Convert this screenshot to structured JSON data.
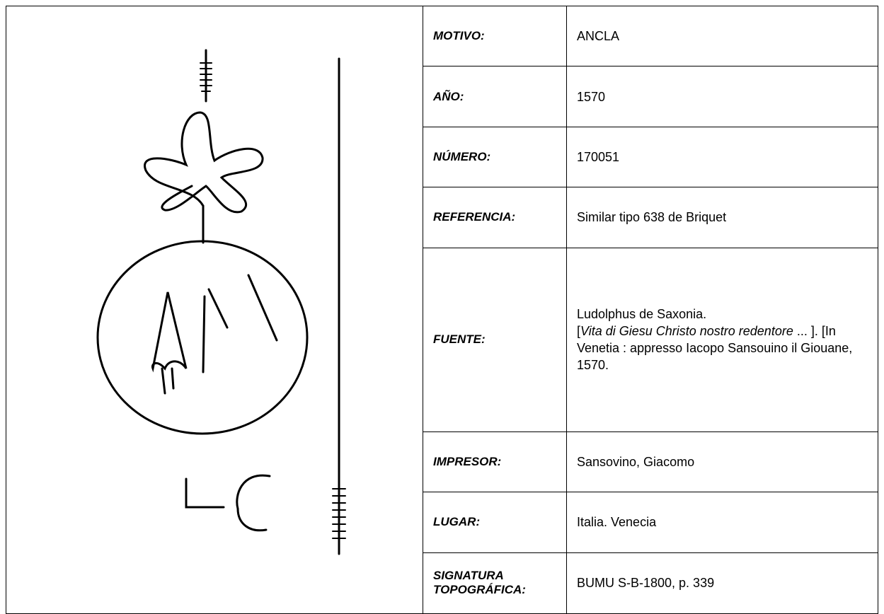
{
  "rows": [
    {
      "label": "MOTIVO:",
      "value": "ANCLA"
    },
    {
      "label": "AÑO:",
      "value": "1570"
    },
    {
      "label": "NÚMERO:",
      "value": "170051"
    },
    {
      "label": "REFERENCIA:",
      "value": "Similar tipo 638 de Briquet"
    },
    {
      "label": "FUENTE:",
      "value": {
        "line1": "Ludolphus de Saxonia.",
        "open": "[",
        "title": "Vita di Giesu Christo nostro redentore",
        "rest": " ... ]. [In Venetia : appresso Iacopo Sansouino il Giouane, 1570."
      }
    },
    {
      "label": "IMPRESOR:",
      "value": "Sansovino, Giacomo"
    },
    {
      "label": "LUGAR:",
      "value": "Italia. Venecia"
    },
    {
      "label": "SIGNATURA TOPOGRÁFICA:",
      "value": "BUMU S-B-1800, p. 339"
    }
  ]
}
